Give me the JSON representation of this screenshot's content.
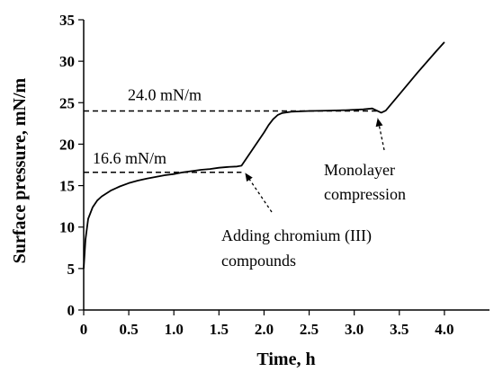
{
  "chart_data": {
    "type": "line",
    "xlabel": "Time, h",
    "ylabel": "Surface pressure, mN/m",
    "xlim": [
      0,
      4.5
    ],
    "ylim": [
      0,
      35
    ],
    "x_ticks": [
      0,
      0.5,
      1.0,
      1.5,
      2.0,
      2.5,
      3.0,
      3.5,
      4.0
    ],
    "x_tick_labels": [
      "0",
      "0.5",
      "1.0",
      "1.5",
      "2.0",
      "2.5",
      "3.0",
      "3.5",
      "4.0"
    ],
    "y_ticks": [
      0,
      5,
      10,
      15,
      20,
      25,
      30,
      35
    ],
    "y_tick_labels": [
      "0",
      "5",
      "10",
      "15",
      "20",
      "25",
      "30",
      "35"
    ],
    "grid": false,
    "legend": "none",
    "series": [
      {
        "color": "#000000",
        "points": [
          [
            0,
            5.0
          ],
          [
            0.02,
            8.5
          ],
          [
            0.05,
            11.0
          ],
          [
            0.1,
            12.4
          ],
          [
            0.15,
            13.2
          ],
          [
            0.2,
            13.7
          ],
          [
            0.3,
            14.4
          ],
          [
            0.4,
            14.9
          ],
          [
            0.5,
            15.3
          ],
          [
            0.6,
            15.6
          ],
          [
            0.7,
            15.85
          ],
          [
            0.8,
            16.05
          ],
          [
            0.9,
            16.25
          ],
          [
            1.0,
            16.4
          ],
          [
            1.1,
            16.6
          ],
          [
            1.2,
            16.75
          ],
          [
            1.3,
            16.9
          ],
          [
            1.4,
            17.0
          ],
          [
            1.5,
            17.15
          ],
          [
            1.6,
            17.25
          ],
          [
            1.7,
            17.3
          ],
          [
            1.75,
            17.4
          ],
          [
            1.8,
            18.2
          ],
          [
            1.9,
            19.8
          ],
          [
            2.0,
            21.4
          ],
          [
            2.05,
            22.3
          ],
          [
            2.1,
            23.0
          ],
          [
            2.15,
            23.5
          ],
          [
            2.2,
            23.75
          ],
          [
            2.3,
            23.9
          ],
          [
            2.5,
            24.0
          ],
          [
            2.7,
            24.05
          ],
          [
            2.9,
            24.1
          ],
          [
            3.1,
            24.2
          ],
          [
            3.2,
            24.3
          ],
          [
            3.25,
            24.05
          ],
          [
            3.3,
            23.8
          ],
          [
            3.35,
            24.05
          ],
          [
            3.5,
            26.0
          ],
          [
            3.7,
            28.6
          ],
          [
            3.9,
            31.1
          ],
          [
            4.0,
            32.3
          ]
        ]
      }
    ],
    "reference_lines": [
      {
        "y": 24.0,
        "x_from": 0,
        "x_to": 3.25,
        "label": "24.0 mN/m"
      },
      {
        "y": 16.6,
        "x_from": 0,
        "x_to": 1.75,
        "label": "16.6 mN/m"
      }
    ],
    "annotations": [
      {
        "text_lines": [
          "Adding chromium (III)",
          "compounds"
        ],
        "arrow_to": [
          1.75,
          17.4
        ]
      },
      {
        "text_lines": [
          "Monolayer",
          "compression"
        ],
        "arrow_to": [
          3.25,
          24.0
        ]
      }
    ]
  }
}
